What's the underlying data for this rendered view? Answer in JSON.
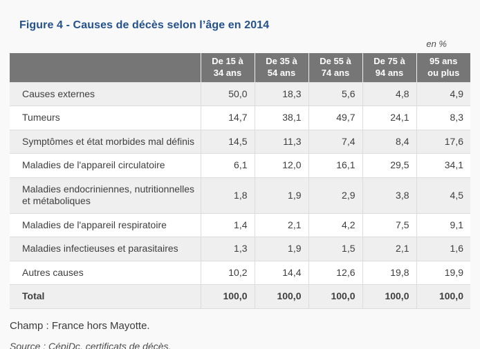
{
  "page": {
    "title": "Figure 4 - Causes de décès selon l’âge en 2014",
    "unit_note": "en %",
    "champ_note": "Champ : France hors Mayotte.",
    "source_note": "Source : CépiDc, certificats de décès."
  },
  "table": {
    "corner_label": "",
    "columns": [
      "De 15 à\n34 ans",
      "De 35 à\n54 ans",
      "De 55 à\n74 ans",
      "De 75 à\n94 ans",
      "95 ans\nou plus"
    ],
    "rows": [
      {
        "label": "Causes externes",
        "values": [
          "50,0",
          "18,3",
          "5,6",
          "4,8",
          "4,9"
        ]
      },
      {
        "label": "Tumeurs",
        "values": [
          "14,7",
          "38,1",
          "49,7",
          "24,1",
          "8,3"
        ]
      },
      {
        "label": "Symptômes et état morbides mal définis",
        "values": [
          "14,5",
          "11,3",
          "7,4",
          "8,4",
          "17,6"
        ]
      },
      {
        "label": "Maladies de l'appareil circulatoire",
        "values": [
          "6,1",
          "12,0",
          "16,1",
          "29,5",
          "34,1"
        ]
      },
      {
        "label": "Maladies endocriniennes, nutritionnelles et métaboliques",
        "values": [
          "1,8",
          "1,9",
          "2,9",
          "3,8",
          "4,5"
        ]
      },
      {
        "label": "Maladies de l'appareil respiratoire",
        "values": [
          "1,4",
          "2,1",
          "4,2",
          "7,5",
          "9,1"
        ]
      },
      {
        "label": "Maladies infectieuses et parasitaires",
        "values": [
          "1,3",
          "1,9",
          "1,5",
          "2,1",
          "1,6"
        ]
      },
      {
        "label": "Autres causes",
        "values": [
          "10,2",
          "14,4",
          "12,6",
          "19,8",
          "19,9"
        ]
      }
    ],
    "total_row": {
      "label": "Total",
      "values": [
        "100,0",
        "100,0",
        "100,0",
        "100,0",
        "100,0"
      ]
    }
  },
  "colors": {
    "page_background": "#f9f9f9",
    "title_blue": "#24518c",
    "header_gray": "#767676",
    "header_text": "#ffffff",
    "odd_row_gray": "#efefef",
    "even_row_white": "#ffffff",
    "border_gray": "#dcdcdc",
    "body_text": "#3e3e3e"
  },
  "chart_data": {
    "type": "table",
    "title": "Figure 4 - Causes de décès selon l’âge en 2014",
    "unit": "en %",
    "categories": [
      "De 15 à 34 ans",
      "De 35 à 54 ans",
      "De 55 à 74 ans",
      "De 75 à 94 ans",
      "95 ans ou plus"
    ],
    "series": [
      {
        "name": "Causes externes",
        "values": [
          50.0,
          18.3,
          5.6,
          4.8,
          4.9
        ]
      },
      {
        "name": "Tumeurs",
        "values": [
          14.7,
          38.1,
          49.7,
          24.1,
          8.3
        ]
      },
      {
        "name": "Symptômes et état morbides mal définis",
        "values": [
          14.5,
          11.3,
          7.4,
          8.4,
          17.6
        ]
      },
      {
        "name": "Maladies de l'appareil circulatoire",
        "values": [
          6.1,
          12.0,
          16.1,
          29.5,
          34.1
        ]
      },
      {
        "name": "Maladies endocriniennes, nutritionnelles et métaboliques",
        "values": [
          1.8,
          1.9,
          2.9,
          3.8,
          4.5
        ]
      },
      {
        "name": "Maladies de l'appareil respiratoire",
        "values": [
          1.4,
          2.1,
          4.2,
          7.5,
          9.1
        ]
      },
      {
        "name": "Maladies infectieuses et parasitaires",
        "values": [
          1.3,
          1.9,
          1.5,
          2.1,
          1.6
        ]
      },
      {
        "name": "Autres causes",
        "values": [
          10.2,
          14.4,
          12.6,
          19.8,
          19.9
        ]
      },
      {
        "name": "Total",
        "values": [
          100.0,
          100.0,
          100.0,
          100.0,
          100.0
        ]
      }
    ],
    "notes": [
      "Champ : France hors Mayotte.",
      "Source : CépiDc, certificats de décès."
    ]
  }
}
